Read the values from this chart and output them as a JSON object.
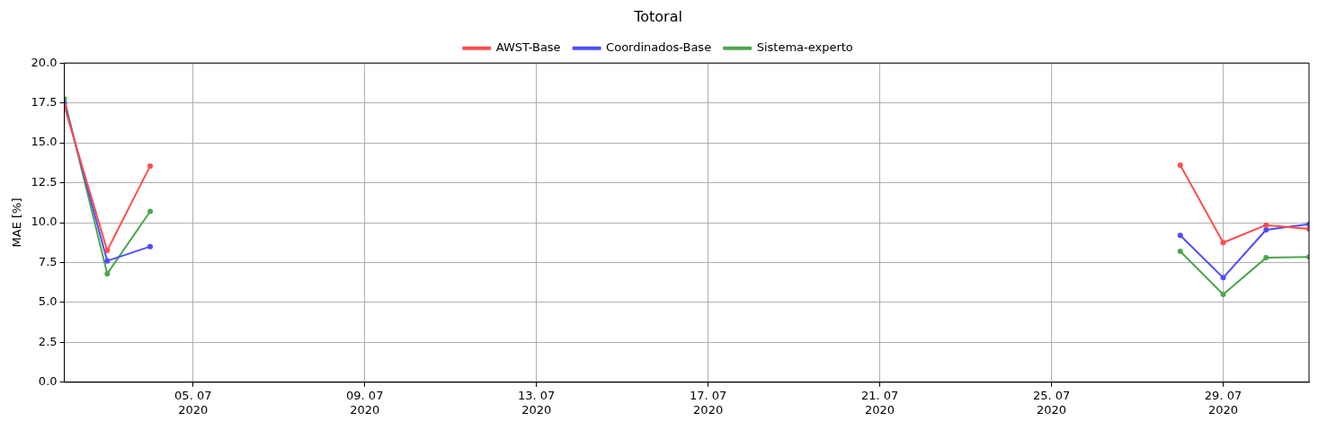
{
  "chart_data": {
    "type": "line",
    "title": "Totoral",
    "ylabel": "MAE [%]",
    "x": [
      "2020-07-02",
      "2020-07-03",
      "2020-07-04",
      "2020-07-05",
      "2020-07-28",
      "2020-07-29",
      "2020-07-30",
      "2020-07-31"
    ],
    "series": [
      {
        "name": "AWST-Base",
        "color": "#ff4d4d",
        "values": [
          17.3,
          8.25,
          13.55,
          null,
          13.6,
          8.75,
          9.85,
          9.6
        ]
      },
      {
        "name": "Coordinados-Base",
        "color": "#4d4dff",
        "values": [
          17.5,
          7.6,
          8.5,
          null,
          9.2,
          6.55,
          9.55,
          9.9
        ]
      },
      {
        "name": "Sistema-experto",
        "color": "#4da64d",
        "values": [
          17.75,
          6.8,
          10.7,
          null,
          8.2,
          5.5,
          7.8,
          7.85
        ]
      }
    ],
    "xlim": [
      "2020-07-02",
      "2020-07-31"
    ],
    "xticks": [
      {
        "value": "2020-07-05",
        "label": "05. 07 2020"
      },
      {
        "value": "2020-07-09",
        "label": "09. 07 2020"
      },
      {
        "value": "2020-07-13",
        "label": "13. 07 2020"
      },
      {
        "value": "2020-07-17",
        "label": "17. 07 2020"
      },
      {
        "value": "2020-07-21",
        "label": "21. 07 2020"
      },
      {
        "value": "2020-07-25",
        "label": "25. 07 2020"
      },
      {
        "value": "2020-07-29",
        "label": "29. 07 2020"
      }
    ],
    "ylim": [
      0,
      20
    ],
    "yticks": [
      {
        "value": 0,
        "label": "0.0"
      },
      {
        "value": 2.5,
        "label": "2.5"
      },
      {
        "value": 5,
        "label": "5.0"
      },
      {
        "value": 7.5,
        "label": "7.5"
      },
      {
        "value": 10,
        "label": "10.0"
      },
      {
        "value": 12.5,
        "label": "12.5"
      },
      {
        "value": 15,
        "label": "15.0"
      },
      {
        "value": 17.5,
        "label": "17.5"
      },
      {
        "value": 20,
        "label": "20.0"
      }
    ],
    "grid": true,
    "legend": "top",
    "marker": "circle",
    "line_style": "solid"
  }
}
